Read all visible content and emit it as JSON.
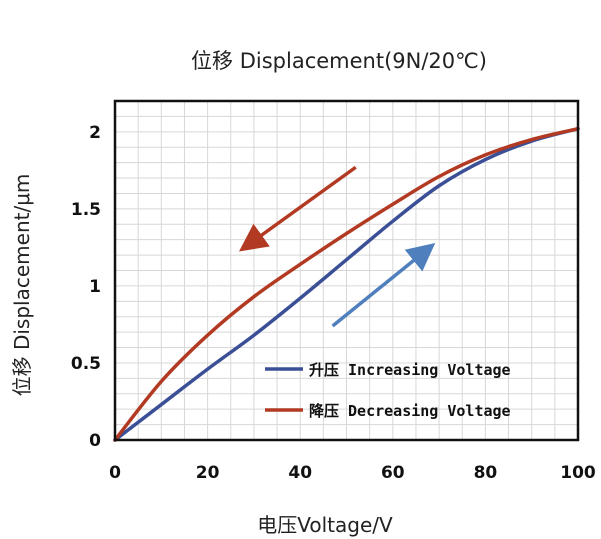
{
  "chart_data": {
    "type": "line",
    "title": "位移 Displacement(9N/20℃)",
    "xlabel": "电压Voltage/V",
    "ylabel": "位移 Displacement/μm",
    "xlim": [
      0,
      100
    ],
    "ylim": [
      0,
      2.2
    ],
    "x_ticks": [
      "0",
      "20",
      "40",
      "60",
      "80",
      "100"
    ],
    "y_ticks": [
      "0",
      "0.5",
      "1",
      "1.5",
      "2"
    ],
    "grid": true,
    "legend_position": "bottom-right",
    "series": [
      {
        "name": "升压 Increasing Voltage",
        "color": "#3b4f96",
        "x": [
          0,
          10,
          20,
          30,
          40,
          50,
          60,
          70,
          80,
          90,
          100
        ],
        "y": [
          0,
          0.23,
          0.46,
          0.68,
          0.92,
          1.17,
          1.42,
          1.65,
          1.82,
          1.94,
          2.02
        ]
      },
      {
        "name": "降压 Decreasing Voltage",
        "color": "#b33a22",
        "x": [
          0,
          10,
          20,
          30,
          40,
          50,
          60,
          70,
          80,
          90,
          100
        ],
        "y": [
          0,
          0.38,
          0.68,
          0.93,
          1.14,
          1.34,
          1.53,
          1.71,
          1.85,
          1.95,
          2.02
        ]
      }
    ],
    "annotations": [
      {
        "type": "arrow",
        "meaning": "decreasing-voltage-direction",
        "color": "#b33a22",
        "from": [
          52,
          1.77
        ],
        "to": [
          28,
          1.25
        ]
      },
      {
        "type": "arrow",
        "meaning": "increasing-voltage-direction",
        "color": "#4f7fbd",
        "from": [
          47,
          0.74
        ],
        "to": [
          68,
          1.25
        ]
      }
    ]
  }
}
